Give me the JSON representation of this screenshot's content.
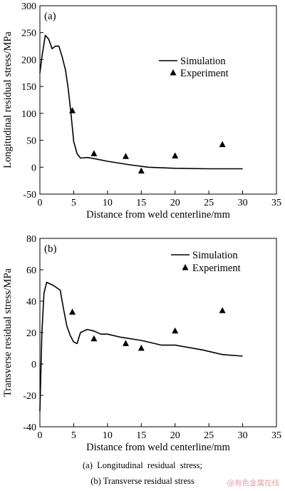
{
  "chart_data": [
    {
      "type": "line",
      "panel_label": "(a)",
      "xlabel": "Distance from weld centerline/mm",
      "ylabel": "Longitudinal residual stress/MPa",
      "xlim": [
        0,
        35
      ],
      "ylim": [
        -50,
        300
      ],
      "xticks": [
        0,
        5,
        10,
        15,
        20,
        25,
        30,
        35
      ],
      "yticks": [
        -50,
        0,
        50,
        100,
        150,
        200,
        250,
        300
      ],
      "legend_position": "upper-right",
      "grid": false,
      "series": [
        {
          "name": "Simulation",
          "kind": "line",
          "x": [
            0,
            0.3,
            0.8,
            1.3,
            1.8,
            2.3,
            2.8,
            3.3,
            3.8,
            4.2,
            4.6,
            5.0,
            5.5,
            6.0,
            7.0,
            8.0,
            10.0,
            13.0,
            16.0,
            20.0,
            25.0,
            30.0
          ],
          "y": [
            175,
            205,
            245,
            238,
            220,
            225,
            225,
            205,
            180,
            145,
            100,
            48,
            25,
            17,
            18,
            16,
            11,
            5,
            0,
            -2,
            -3,
            -3
          ]
        },
        {
          "name": "Experiment",
          "kind": "scatter",
          "marker": "triangle",
          "x": [
            4.8,
            8,
            12.7,
            15,
            20,
            27
          ],
          "y": [
            105,
            25,
            20,
            -7,
            21,
            42
          ]
        }
      ]
    },
    {
      "type": "line",
      "panel_label": "(b)",
      "xlabel": "Distance from weld centerline/mm",
      "ylabel": "Transverse residual stress/MPa",
      "xlim": [
        0,
        35
      ],
      "ylim": [
        -40,
        80
      ],
      "xticks": [
        0,
        5,
        10,
        15,
        20,
        25,
        30,
        35
      ],
      "yticks": [
        -40,
        -20,
        0,
        20,
        40,
        60,
        80
      ],
      "legend_position": "upper-right",
      "grid": false,
      "series": [
        {
          "name": "Simulation",
          "kind": "line",
          "x": [
            0,
            0.3,
            0.6,
            1.0,
            2.0,
            3.0,
            3.5,
            4.0,
            4.5,
            5.0,
            5.5,
            6.0,
            7.0,
            8.0,
            9.0,
            10.0,
            12.0,
            15.0,
            18.0,
            20.0,
            24.0,
            27.0,
            30.0
          ],
          "y": [
            -30,
            20,
            45,
            52,
            50,
            47,
            35,
            24,
            18,
            14,
            13,
            20,
            22,
            21,
            19,
            19,
            17,
            15,
            12,
            12,
            9,
            6,
            5
          ]
        },
        {
          "name": "Experiment",
          "kind": "scatter",
          "marker": "triangle",
          "x": [
            4.8,
            8,
            12.7,
            15,
            20,
            27
          ],
          "y": [
            33,
            16,
            13,
            10,
            21,
            34
          ]
        }
      ]
    }
  ],
  "captions": {
    "line1": "(a)  Longitudinal  residual  stress;",
    "line2": "(b) Transverse residual stress"
  },
  "watermark": "@有色金属在线"
}
